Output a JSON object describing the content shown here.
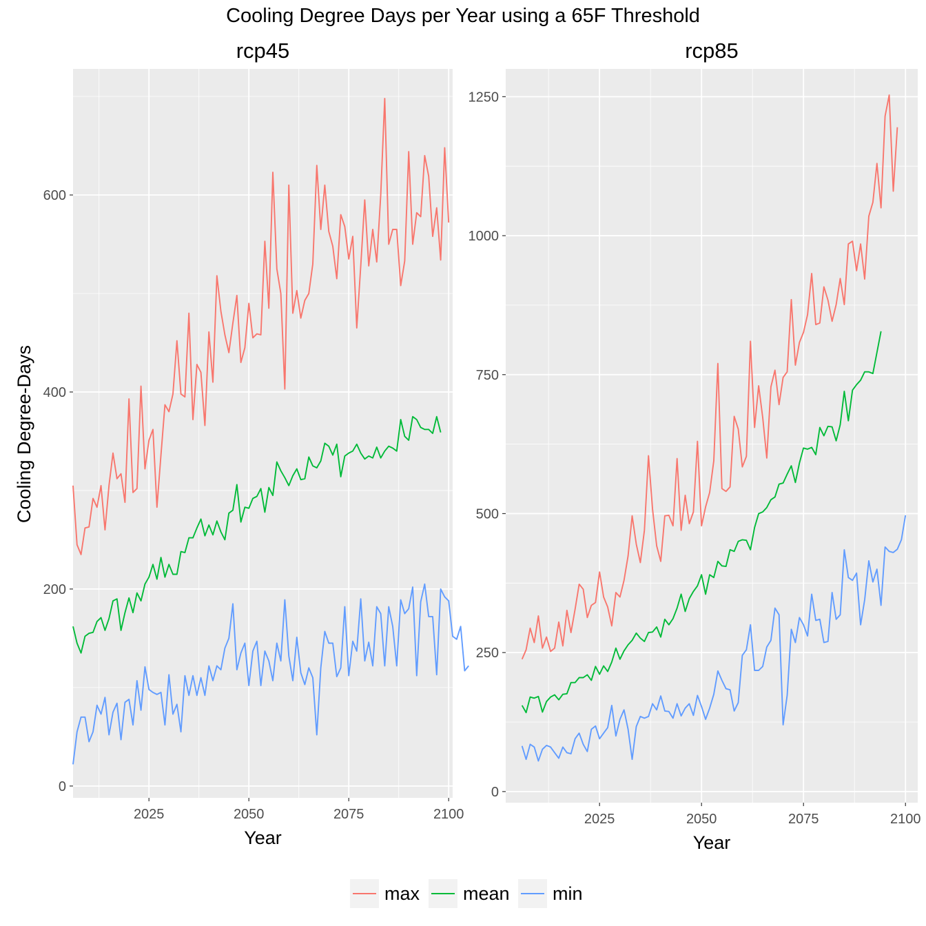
{
  "chart_data": {
    "type": "line",
    "title": "Cooling Degree Days per Year using a 65F Threshold",
    "ylabel": "Cooling Degree-Days",
    "xlabel": "Year",
    "legend": {
      "position": "bottom",
      "entries": [
        {
          "name": "max",
          "color": "#F8766D"
        },
        {
          "name": "mean",
          "color": "#00BA38"
        },
        {
          "name": "min",
          "color": "#619CFF"
        }
      ]
    },
    "grid": true,
    "panels": [
      {
        "title": "rcp45",
        "xlim": [
          2006,
          2101
        ],
        "ylim": [
          -12,
          728
        ],
        "xticks": [
          2025,
          2050,
          2075,
          2100
        ],
        "yticks": [
          0,
          200,
          400,
          600
        ],
        "x_start": 2006,
        "series": [
          {
            "name": "max",
            "values": [
              305,
              245,
              235,
              262,
              263,
              292,
              283,
              305,
              260,
              305,
              338,
              312,
              317,
              288,
              393,
              298,
              302,
              406,
              322,
              351,
              362,
              283,
              336,
              387,
              380,
              398,
              452,
              398,
              395,
              480,
              372,
              428,
              420,
              366,
              461,
              410,
              518,
              482,
              458,
              440,
              470,
              498,
              430,
              445,
              490,
              455,
              459,
              458,
              553,
              485,
              623,
              525,
              500,
              403,
              610,
              480,
              503,
              475,
              493,
              500,
              530,
              630,
              565,
              610,
              563,
              548,
              515,
              580,
              568,
              535,
              558,
              465,
              528,
              595,
              528,
              565,
              532,
              600,
              698,
              550,
              565,
              565,
              508,
              533,
              644,
              550,
              582,
              578,
              640,
              619,
              558,
              587,
              534,
              648,
              572
            ]
          },
          {
            "name": "mean",
            "values": [
              162,
              145,
              135,
              152,
              155,
              156,
              167,
              171,
              158,
              170,
              188,
              190,
              158,
              176,
              191,
              176,
              196,
              188,
              205,
              212,
              225,
              210,
              232,
              212,
              225,
              215,
              215,
              238,
              237,
              252,
              252,
              262,
              271,
              254,
              265,
              255,
              269,
              258,
              250,
              277,
              280,
              306,
              268,
              283,
              282,
              292,
              294,
              302,
              278,
              303,
              295,
              329,
              320,
              313,
              305,
              315,
              322,
              311,
              312,
              334,
              325,
              323,
              330,
              348,
              345,
              336,
              347,
              314,
              335,
              338,
              340,
              347,
              338,
              332,
              335,
              333,
              344,
              333,
              340,
              345,
              343,
              340,
              372,
              355,
              351,
              375,
              372,
              364,
              362,
              362,
              358,
              375,
              359
            ]
          },
          {
            "name": "min",
            "values": [
              22,
              55,
              70,
              70,
              45,
              55,
              82,
              73,
              90,
              52,
              75,
              84,
              47,
              85,
              88,
              62,
              107,
              77,
              121,
              98,
              95,
              93,
              95,
              62,
              113,
              73,
              83,
              55,
              112,
              92,
              112,
              92,
              110,
              92,
              122,
              107,
              122,
              118,
              140,
              150,
              185,
              118,
              135,
              145,
              102,
              137,
              147,
              102,
              137,
              127,
              107,
              145,
              127,
              189,
              132,
              107,
              151,
              115,
              103,
              120,
              110,
              52,
              120,
              157,
              145,
              145,
              111,
              120,
              182,
              112,
              147,
              137,
              190,
              127,
              146,
              122,
              182,
              175,
              122,
              182,
              162,
              122,
              189,
              175,
              180,
              202,
              112,
              187,
              205,
              172,
              172,
              113,
              200,
              192,
              188,
              152,
              149,
              162,
              117,
              122
            ]
          }
        ]
      },
      {
        "title": "rcp85",
        "xlim": [
          2002,
          2103
        ],
        "ylim": [
          -20,
          1300
        ],
        "xticks": [
          2025,
          2050,
          2075,
          2100
        ],
        "yticks": [
          0,
          250,
          500,
          750,
          1000,
          1250
        ],
        "x_start": 2006,
        "series": [
          {
            "name": "max",
            "values": [
              238,
              255,
              294,
              268,
              316,
              258,
              278,
              252,
              258,
              305,
              262,
              326,
              286,
              328,
              373,
              364,
              313,
              335,
              340,
              395,
              350,
              332,
              298,
              358,
              350,
              380,
              424,
              496,
              445,
              412,
              470,
              604,
              508,
              442,
              414,
              496,
              497,
              478,
              599,
              470,
              533,
              482,
              503,
              630,
              478,
              512,
              538,
              595,
              770,
              545,
              540,
              548,
              675,
              652,
              584,
              603,
              810,
              655,
              730,
              673,
              600,
              728,
              758,
              696,
              745,
              755,
              885,
              767,
              808,
              826,
              858,
              932,
              840,
              843,
              908,
              884,
              846,
              876,
              923,
              876,
              985,
              990,
              937,
              985,
              922,
              1035,
              1060,
              1130,
              1050,
              1215,
              1253,
              1080,
              1195
            ]
          },
          {
            "name": "mean",
            "values": [
              155,
              142,
              170,
              168,
              171,
              143,
              162,
              170,
              174,
              165,
              175,
              176,
              196,
              196,
              205,
              205,
              210,
              200,
              225,
              211,
              226,
              216,
              233,
              258,
              238,
              253,
              264,
              272,
              285,
              276,
              270,
              286,
              287,
              296,
              278,
              310,
              300,
              311,
              330,
              355,
              324,
              347,
              360,
              370,
              390,
              355,
              390,
              385,
              414,
              406,
              405,
              435,
              432,
              450,
              453,
              452,
              435,
              475,
              500,
              503,
              511,
              525,
              530,
              553,
              555,
              571,
              586,
              556,
              591,
              618,
              616,
              619,
              606,
              655,
              640,
              657,
              656,
              631,
              660,
              720,
              667,
              722,
              732,
              740,
              755,
              755,
              752,
              790,
              828
            ]
          },
          {
            "name": "min",
            "values": [
              82,
              58,
              85,
              80,
              55,
              76,
              83,
              80,
              70,
              60,
              80,
              70,
              68,
              95,
              105,
              85,
              72,
              112,
              118,
              95,
              105,
              115,
              155,
              100,
              130,
              147,
              112,
              58,
              117,
              135,
              132,
              135,
              158,
              147,
              172,
              145,
              144,
              132,
              158,
              136,
              150,
              158,
              137,
              173,
              153,
              130,
              150,
              175,
              217,
              200,
              185,
              183,
              145,
              160,
              245,
              255,
              300,
              218,
              218,
              225,
              260,
              272,
              330,
              318,
              120,
              173,
              292,
              268,
              313,
              300,
              280,
              355,
              308,
              310,
              268,
              270,
              358,
              310,
              318,
              435,
              385,
              380,
              393,
              300,
              345,
              415,
              377,
              400,
              335,
              440,
              432,
              430,
              436,
              453,
              497
            ]
          }
        ]
      }
    ]
  }
}
